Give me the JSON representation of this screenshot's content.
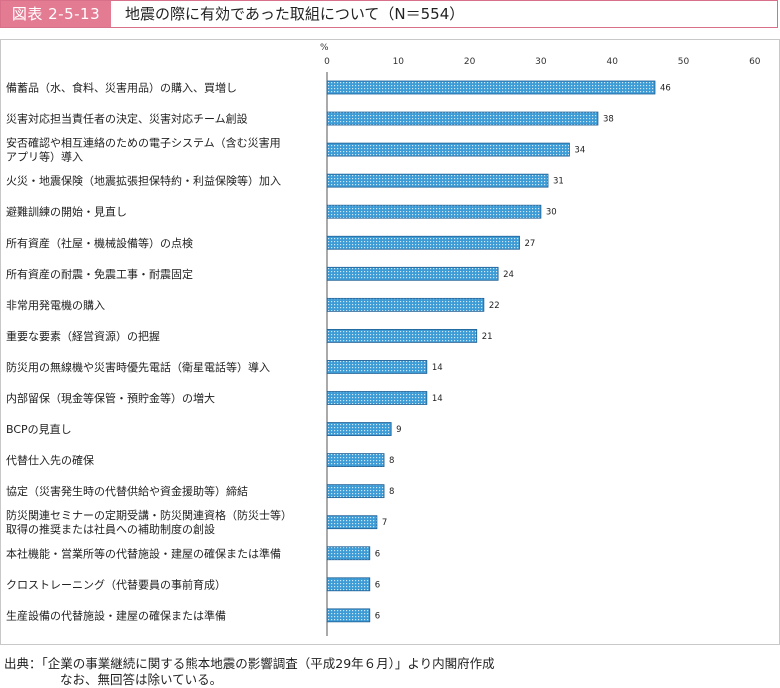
{
  "header": {
    "figure_label": "図表 2-5-13",
    "title": "地震の際に有効であった取組について（N＝554）"
  },
  "colors": {
    "accent": "#e37b93",
    "bar_fill": "#3d9bd6",
    "bar_stroke": "#1f5f94"
  },
  "chart_data": {
    "type": "bar",
    "orientation": "horizontal",
    "unit_label": "%",
    "xlim": [
      0,
      60
    ],
    "ticks": [
      0,
      10,
      20,
      30,
      40,
      50,
      60
    ],
    "grid": false,
    "categories": [
      [
        "備蓄品（水、食料、災害用品）の購入、買増し"
      ],
      [
        "災害対応担当責任者の決定、災害対応チーム創設"
      ],
      [
        "安否確認や相互連絡のための電子システム（含む災害用",
        "アプリ等）導入"
      ],
      [
        "火災・地震保険（地震拡張担保特約・利益保険等）加入"
      ],
      [
        "避難訓練の開始・見直し"
      ],
      [
        "所有資産（社屋・機械設備等）の点検"
      ],
      [
        "所有資産の耐震・免震工事・耐震固定"
      ],
      [
        "非常用発電機の購入"
      ],
      [
        "重要な要素（経営資源）の把握"
      ],
      [
        "防災用の無線機や災害時優先電話（衛星電話等）導入"
      ],
      [
        "内部留保（現金等保管・預貯金等）の増大"
      ],
      [
        "BCPの見直し"
      ],
      [
        "代替仕入先の確保"
      ],
      [
        "協定（災害発生時の代替供給や資金援助等）締結"
      ],
      [
        "防災関連セミナーの定期受講・防災関連資格（防災士等）",
        "取得の推奨または社員への補助制度の創設"
      ],
      [
        "本社機能・営業所等の代替施設・建屋の確保または準備"
      ],
      [
        "クロストレーニング（代替要員の事前育成）"
      ],
      [
        "生産設備の代替施設・建屋の確保または準備"
      ]
    ],
    "values": [
      46,
      38,
      34,
      31,
      30,
      27,
      24,
      22,
      21,
      14,
      14,
      9,
      8,
      8,
      7,
      6,
      6,
      6
    ]
  },
  "source": {
    "line1": "出典：「企業の事業継続に関する熊本地震の影響調査（平成29年６月）」より内閣府作成",
    "line2": "なお、無回答は除いている。"
  }
}
